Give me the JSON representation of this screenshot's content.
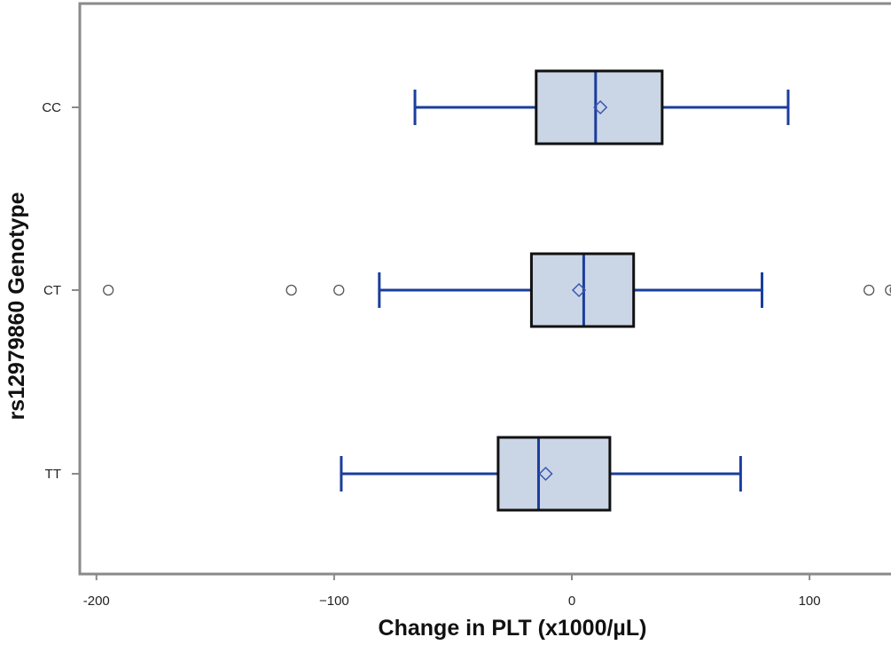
{
  "chart_data": {
    "type": "boxplot",
    "orientation": "horizontal",
    "xlabel": "Change in PLT (x1000/µL)",
    "ylabel": "rs12979860 Genotype",
    "xlim": [
      -207,
      138
    ],
    "x_ticks": [
      {
        "value": -200,
        "label": "-200"
      },
      {
        "value": -100,
        "label": "−100"
      },
      {
        "value": 0,
        "label": "0"
      },
      {
        "value": 100,
        "label": "100"
      }
    ],
    "categories": [
      "CC",
      "CT",
      "TT"
    ],
    "series": [
      {
        "category": "CC",
        "whisker_low": -66,
        "q1": -15,
        "median": 10,
        "q3": 38,
        "whisker_high": 91,
        "mean": 12,
        "outliers": []
      },
      {
        "category": "CT",
        "whisker_low": -81,
        "q1": -17,
        "median": 5,
        "q3": 26,
        "whisker_high": 80,
        "mean": 3,
        "outliers": [
          -195,
          -118,
          -98,
          125,
          134,
          136
        ]
      },
      {
        "category": "TT",
        "whisker_low": -97,
        "q1": -31,
        "median": -14,
        "q3": 16,
        "whisker_high": 71,
        "mean": -11,
        "outliers": []
      }
    ],
    "grid": false,
    "legend": "none",
    "colors": {
      "box_fill": "#cad6e6",
      "box_edge": "#111111",
      "whisker": "#1b3d9c",
      "median": "#1b3d9c",
      "mean_marker": "#3a55b0",
      "outlier": "#555555",
      "frame": "#8a8a8a"
    }
  }
}
